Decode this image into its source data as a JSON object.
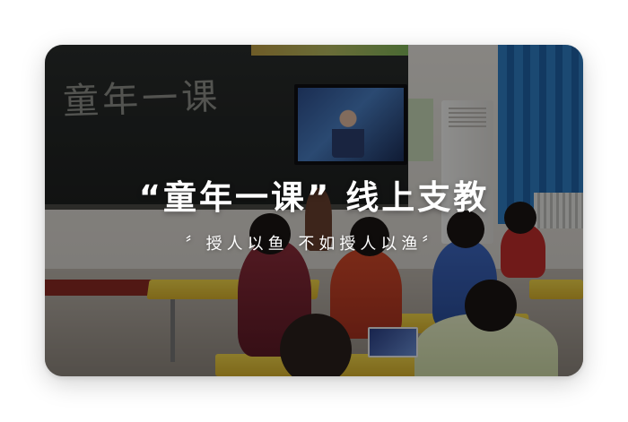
{
  "card": {
    "title": "“童年一课” 线上支教",
    "subtitle": "〞授人以鱼 不如授人以渔〞",
    "photo": {
      "chalkboard_text": "童年一课"
    }
  },
  "colors": {
    "overlay": "rgba(0,0,0,0.42)",
    "text": "#ffffff",
    "page_background": "#ffffff"
  }
}
